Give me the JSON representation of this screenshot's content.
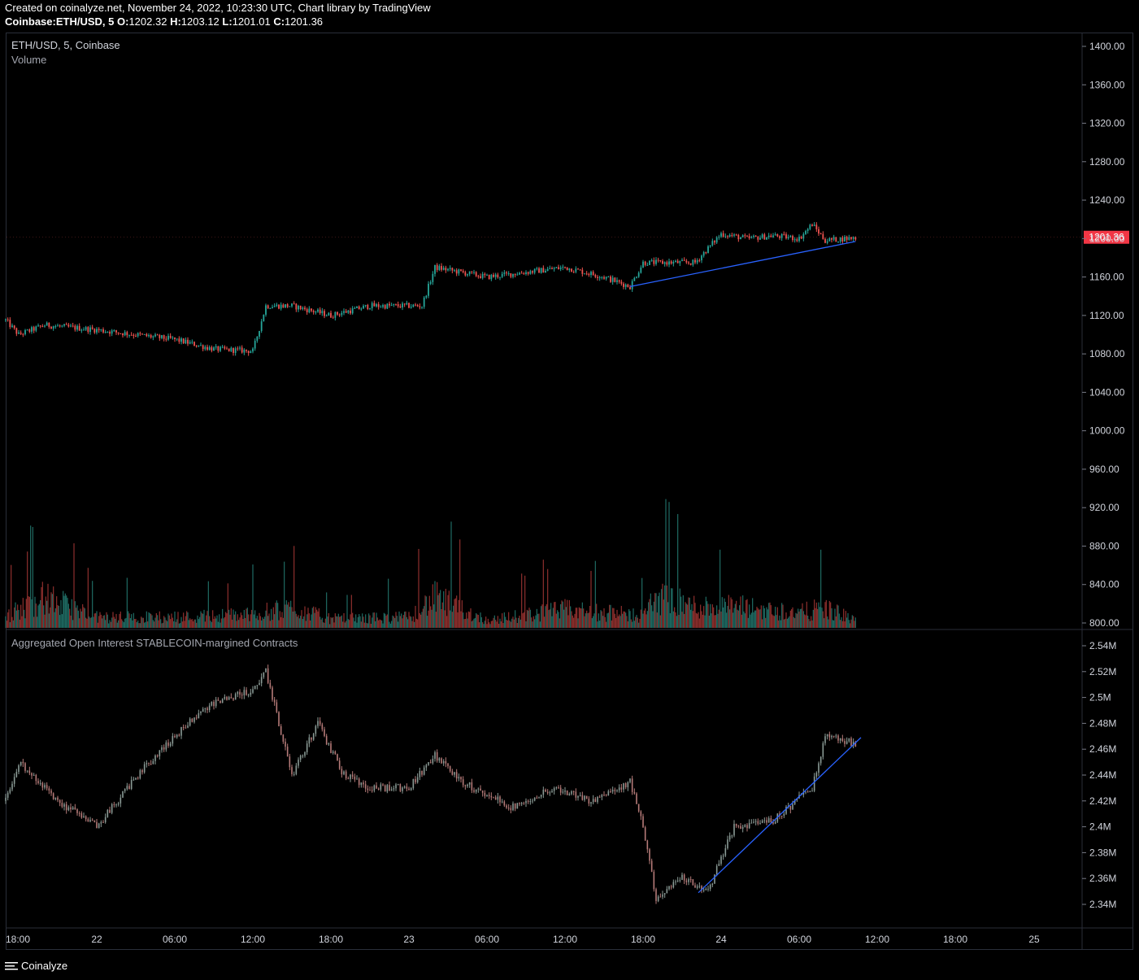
{
  "header": {
    "line1": "Created on coinalyze.net, November 24, 2022, 10:23:30 UTC, Chart library by TradingView",
    "symbol": "Coinbase:ETH/USD, 5",
    "o_label": "O:",
    "o": "1202.32",
    "h_label": "H:",
    "h": "1203.12",
    "l_label": "L:",
    "l": "1201.01",
    "c_label": "C:",
    "c": "1201.36"
  },
  "panes": {
    "price_title": "ETH/USD, 5, Coinbase",
    "volume_title": "Volume",
    "oi_title": "Aggregated Open Interest STABLECOIN-margined Contracts",
    "last_price": "1201.36"
  },
  "footer": {
    "brand": "Coinalyze"
  },
  "colors": {
    "up": "#26a69a",
    "down": "#ef5350",
    "vol_up": "#1f6b63",
    "vol_down": "#8e2f2d",
    "trendline": "#2962ff",
    "oi_candle": "#9e9e9e",
    "grid": "#2a2e39",
    "text": "#d1d4dc"
  },
  "chart_data": [
    {
      "type": "line",
      "kind": "candlestick",
      "title": "ETH/USD, 5, Coinbase",
      "ylim": [
        800,
        1410
      ],
      "y_ticks": [
        "1400.00",
        "1360.00",
        "1320.00",
        "1280.00",
        "1240.00",
        "1200.00",
        "1160.00",
        "1120.00",
        "1080.00",
        "1040.00",
        "1000.00",
        "960.00",
        "920.00",
        "880.00",
        "840.00",
        "800.00"
      ],
      "last_value": 1201.36,
      "x": [
        "Nov 21 17:00",
        "Nov 21 18:00",
        "Nov 21 20:00",
        "Nov 22 00:00",
        "Nov 22 03:00",
        "Nov 22 06:00",
        "Nov 22 09:00",
        "Nov 22 12:00",
        "Nov 22 13:00",
        "Nov 22 15:00",
        "Nov 22 18:00",
        "Nov 22 21:00",
        "Nov 23 01:00",
        "Nov 23 02:00",
        "Nov 23 06:00",
        "Nov 23 09:00",
        "Nov 23 12:00",
        "Nov 23 15:00",
        "Nov 23 17:00",
        "Nov 23 18:00",
        "Nov 23 22:00",
        "Nov 24 00:00",
        "Nov 24 02:00",
        "Nov 24 04:00",
        "Nov 24 06:00",
        "Nov 24 07:00",
        "Nov 24 08:00",
        "Nov 24 10:15"
      ],
      "y": [
        1115,
        1100,
        1110,
        1105,
        1100,
        1095,
        1085,
        1083,
        1130,
        1130,
        1120,
        1130,
        1130,
        1170,
        1160,
        1165,
        1170,
        1160,
        1150,
        1175,
        1175,
        1205,
        1200,
        1203,
        1200,
        1215,
        1198,
        1201
      ],
      "trendline": {
        "x": [
          "Nov 23 17:00",
          "Nov 24 10:20"
        ],
        "y": [
          1150,
          1197
        ]
      }
    },
    {
      "type": "bar",
      "title": "Volume",
      "ylim": [
        0,
        100
      ],
      "note": "Volume histogram overlaid at bottom of price pane, relative scale",
      "x": [
        "Nov 21 17:00",
        "Nov 21 20:00",
        "Nov 22 00:00",
        "Nov 22 06:00",
        "Nov 22 12:00",
        "Nov 22 15:00",
        "Nov 22 18:00",
        "Nov 23 00:00",
        "Nov 23 02:00",
        "Nov 23 06:00",
        "Nov 23 12:00",
        "Nov 23 18:00",
        "Nov 23 19:00",
        "Nov 23 22:00",
        "Nov 24 01:00",
        "Nov 24 06:00",
        "Nov 24 08:00",
        "Nov 24 10:20"
      ],
      "y": [
        40,
        100,
        35,
        35,
        45,
        65,
        30,
        35,
        98,
        25,
        60,
        40,
        100,
        70,
        70,
        50,
        65,
        25
      ]
    },
    {
      "type": "line",
      "kind": "candlestick",
      "title": "Aggregated Open Interest STABLECOIN-margined Contracts",
      "ylim": [
        2.33,
        2.55
      ],
      "y_ticks": [
        "2.54M",
        "2.52M",
        "2.5M",
        "2.48M",
        "2.46M",
        "2.44M",
        "2.42M",
        "2.4M",
        "2.38M",
        "2.36M",
        "2.34M"
      ],
      "x": [
        "Nov 21 17:00",
        "Nov 21 18:00",
        "Nov 21 21:00",
        "Nov 22 00:00",
        "Nov 22 04:00",
        "Nov 22 06:00",
        "Nov 22 08:00",
        "Nov 22 10:00",
        "Nov 22 12:00",
        "Nov 22 13:00",
        "Nov 22 15:00",
        "Nov 22 17:00",
        "Nov 22 19:00",
        "Nov 22 21:00",
        "Nov 23 00:00",
        "Nov 23 02:00",
        "Nov 23 04:00",
        "Nov 23 08:00",
        "Nov 23 11:00",
        "Nov 23 14:00",
        "Nov 23 17:00",
        "Nov 23 18:00",
        "Nov 23 19:00",
        "Nov 23 21:00",
        "Nov 23 23:00",
        "Nov 24 01:00",
        "Nov 24 04:00",
        "Nov 24 07:00",
        "Nov 24 08:00",
        "Nov 24 10:00"
      ],
      "y": [
        2.42,
        2.45,
        2.42,
        2.4,
        2.45,
        2.47,
        2.49,
        2.5,
        2.505,
        2.52,
        2.44,
        2.48,
        2.44,
        2.43,
        2.43,
        2.455,
        2.435,
        2.415,
        2.43,
        2.42,
        2.435,
        2.4,
        2.345,
        2.36,
        2.35,
        2.4,
        2.405,
        2.43,
        2.47,
        2.465
      ],
      "trendline": {
        "x": [
          "Nov 23 22:15",
          "Nov 24 10:45"
        ],
        "y": [
          2.349,
          2.469
        ]
      }
    }
  ],
  "x_axis": {
    "ticks": [
      "18:00",
      "22",
      "06:00",
      "12:00",
      "18:00",
      "23",
      "06:00",
      "12:00",
      "18:00",
      "24",
      "06:00",
      "12:00",
      "18:00",
      "25"
    ]
  }
}
